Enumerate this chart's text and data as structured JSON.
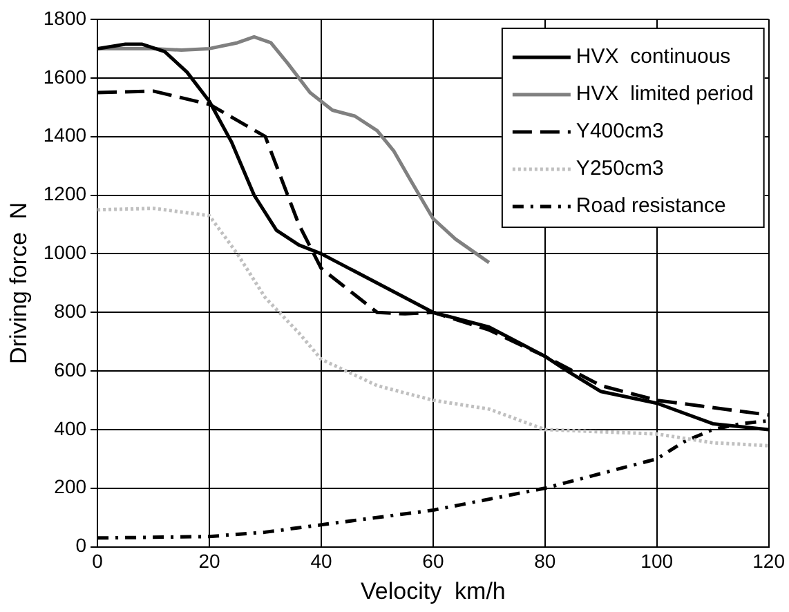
{
  "chart_data": {
    "type": "line",
    "xlabel": "Velocity  km/h",
    "ylabel": "Driving force  N",
    "xlim": [
      0,
      120
    ],
    "xticks": [
      0,
      20,
      40,
      60,
      80,
      100,
      120
    ],
    "ylim": [
      0,
      1800
    ],
    "yticks": [
      0,
      200,
      400,
      600,
      800,
      1000,
      1200,
      1400,
      1600,
      1800
    ],
    "grid": true,
    "legend": "top right",
    "marker": "none",
    "series": [
      {
        "name": "HVX  continuous",
        "color": "#000000",
        "line_style": "solid",
        "x": [
          0,
          5,
          8,
          12,
          16,
          20,
          24,
          28,
          32,
          36,
          40,
          50,
          60,
          70,
          80,
          84,
          90,
          100,
          110,
          120
        ],
        "values": [
          1700,
          1715,
          1715,
          1690,
          1620,
          1520,
          1380,
          1200,
          1080,
          1030,
          1000,
          900,
          800,
          750,
          650,
          600,
          530,
          490,
          420,
          400
        ]
      },
      {
        "name": "HVX  limited period",
        "color": "#808080",
        "line_style": "solid",
        "x": [
          0,
          10,
          15,
          20,
          25,
          28,
          31,
          34,
          38,
          42,
          46,
          50,
          53,
          56,
          60,
          64,
          70
        ],
        "values": [
          1700,
          1700,
          1695,
          1700,
          1720,
          1740,
          1720,
          1650,
          1550,
          1490,
          1470,
          1420,
          1350,
          1250,
          1120,
          1050,
          970
        ]
      },
      {
        "name": "Y400cm3",
        "color": "#000000",
        "line_style": "dashed",
        "x": [
          0,
          10,
          20,
          30,
          32,
          36,
          40,
          46,
          50,
          55,
          60,
          70,
          80,
          90,
          100,
          120
        ],
        "values": [
          1550,
          1555,
          1510,
          1400,
          1300,
          1100,
          950,
          860,
          800,
          795,
          800,
          740,
          650,
          550,
          500,
          450
        ]
      },
      {
        "name": "Y250cm3",
        "color": "#c0c0c0",
        "line_style": "dotted",
        "x": [
          0,
          10,
          20,
          25,
          30,
          36,
          40,
          50,
          60,
          70,
          80,
          100,
          110,
          120
        ],
        "values": [
          1150,
          1155,
          1130,
          1000,
          850,
          730,
          640,
          550,
          500,
          470,
          400,
          385,
          355,
          345
        ]
      },
      {
        "name": "Road resistance",
        "color": "#000000",
        "line_style": "dashdot",
        "x": [
          0,
          20,
          30,
          40,
          60,
          80,
          90,
          100,
          105,
          110,
          115,
          120
        ],
        "values": [
          30,
          35,
          50,
          75,
          125,
          200,
          250,
          300,
          360,
          400,
          420,
          430
        ]
      }
    ]
  }
}
